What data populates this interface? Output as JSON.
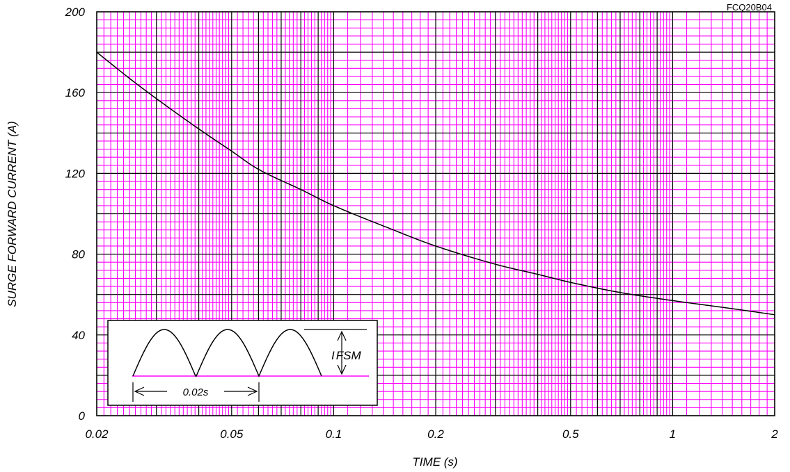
{
  "part_number": "FCQ20B04",
  "chart_data": {
    "type": "line",
    "xlabel": "TIME (s)",
    "ylabel": "SURGE FORWARD CURRENT (A)",
    "x_scale": "log",
    "xlim": [
      0.02,
      2
    ],
    "ylim": [
      0,
      200
    ],
    "x_ticks": [
      {
        "value": 0.02,
        "label": "0.02"
      },
      {
        "value": 0.05,
        "label": "0.05"
      },
      {
        "value": 0.1,
        "label": "0.1"
      },
      {
        "value": 0.2,
        "label": "0.2"
      },
      {
        "value": 0.5,
        "label": "0.5"
      },
      {
        "value": 1,
        "label": "1"
      },
      {
        "value": 2,
        "label": "2"
      }
    ],
    "y_ticks": [
      {
        "value": 0,
        "label": "0"
      },
      {
        "value": 40,
        "label": "40"
      },
      {
        "value": 80,
        "label": "80"
      },
      {
        "value": 120,
        "label": "120"
      },
      {
        "value": 160,
        "label": "160"
      },
      {
        "value": 200,
        "label": "200"
      }
    ],
    "grid": true,
    "colors": {
      "minor_grid": "#ff00ff",
      "major_grid": "#000000",
      "curve": "#000000"
    },
    "series": [
      {
        "x": [
          0.02,
          0.025,
          0.03,
          0.04,
          0.05,
          0.06,
          0.08,
          0.1,
          0.15,
          0.2,
          0.3,
          0.4,
          0.5,
          0.7,
          1,
          1.5,
          2
        ],
        "y": [
          180,
          167,
          157,
          142,
          131,
          122,
          112,
          104,
          92,
          84,
          75,
          70,
          66,
          61,
          57,
          53,
          50
        ]
      }
    ],
    "inset": {
      "interval_label": "0.02s",
      "current_label_main": "I",
      "current_label_sub": "FSM",
      "legend_placement": "bottom-left"
    }
  }
}
